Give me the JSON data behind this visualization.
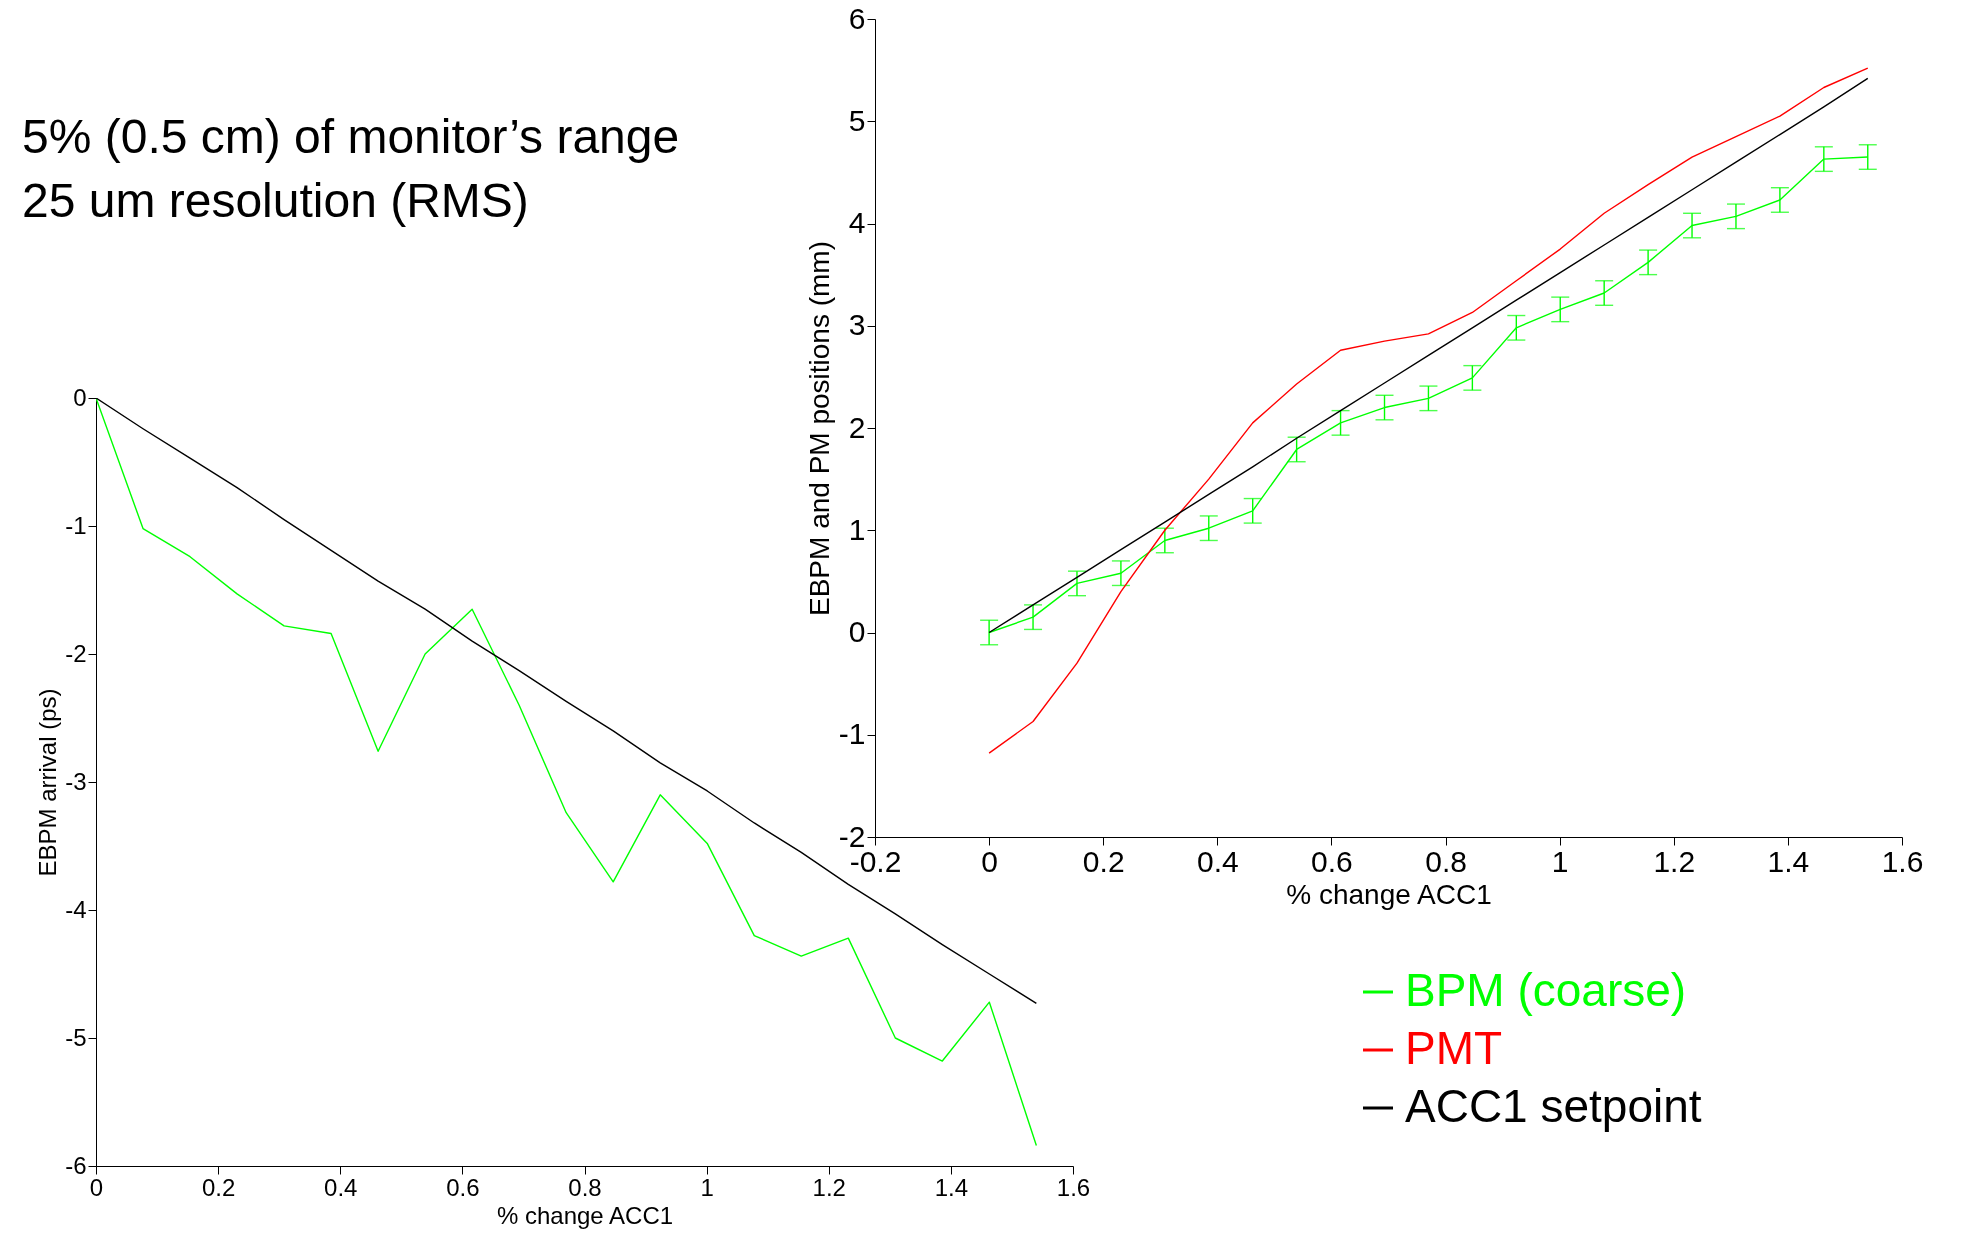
{
  "chart_data": [
    {
      "type": "line",
      "xlabel": "% change ACC1",
      "ylabel": "EBPM arrival (ps)",
      "annotations": [
        "5% (0.5 cm) of monitor’s range",
        "25 um resolution (RMS)"
      ],
      "x": [
        0,
        0.077,
        0.154,
        0.231,
        0.308,
        0.385,
        0.462,
        0.539,
        0.616,
        0.693,
        0.77,
        0.847,
        0.924,
        1.001,
        1.078,
        1.155,
        1.232,
        1.309,
        1.386,
        1.463,
        1.54
      ],
      "series": [
        {
          "color": "#00ff00",
          "values": [
            0,
            -1.02,
            -1.24,
            -1.53,
            -1.78,
            -1.84,
            -2.76,
            -2.0,
            -1.65,
            -2.4,
            -3.24,
            -3.78,
            -3.1,
            -3.48,
            -4.2,
            -4.36,
            -4.22,
            -5.0,
            -5.18,
            -4.72,
            -5.84
          ]
        },
        {
          "color": "#000000",
          "values": [
            0,
            -0.24,
            -0.47,
            -0.7,
            -0.95,
            -1.19,
            -1.43,
            -1.65,
            -1.9,
            -2.13,
            -2.37,
            -2.6,
            -2.85,
            -3.07,
            -3.32,
            -3.55,
            -3.8,
            -4.03,
            -4.27,
            -4.5,
            -4.73
          ]
        }
      ],
      "xlim": [
        0,
        1.6
      ],
      "xticks": [
        0,
        0.2,
        0.4,
        0.6,
        0.8,
        1,
        1.2,
        1.4,
        1.6
      ],
      "ylim": [
        -6,
        0
      ],
      "yticks": [
        -6,
        -5,
        -4,
        -3,
        -2,
        -1,
        0
      ],
      "grid": false,
      "legend": false,
      "line_style": "solid"
    },
    {
      "type": "line",
      "xlabel": "% change ACC1",
      "ylabel": "EBPM and PM positions (mm)",
      "x": [
        0,
        0.077,
        0.154,
        0.231,
        0.308,
        0.385,
        0.462,
        0.539,
        0.616,
        0.693,
        0.77,
        0.847,
        0.924,
        1.001,
        1.078,
        1.155,
        1.232,
        1.309,
        1.386,
        1.463,
        1.54
      ],
      "series": [
        {
          "name": "BPM (coarse)",
          "color": "#00ff00",
          "values": [
            0,
            0.15,
            0.48,
            0.58,
            0.9,
            1.02,
            1.19,
            1.79,
            2.05,
            2.2,
            2.29,
            2.49,
            2.98,
            3.16,
            3.32,
            3.62,
            3.98,
            4.07,
            4.23,
            4.63,
            4.65
          ],
          "errors": [
            0.12,
            0.12,
            0.12,
            0.12,
            0.12,
            0.12,
            0.12,
            0.12,
            0.12,
            0.12,
            0.12,
            0.12,
            0.12,
            0.12,
            0.12,
            0.12,
            0.12,
            0.12,
            0.12,
            0.12,
            0.12
          ]
        },
        {
          "name": "PMT",
          "color": "#ff0000",
          "values": [
            -1.18,
            -0.87,
            -0.3,
            0.4,
            1.0,
            1.5,
            2.05,
            2.43,
            2.76,
            2.85,
            2.92,
            3.13,
            3.44,
            3.75,
            4.1,
            4.38,
            4.65,
            4.85,
            5.05,
            5.33,
            5.52
          ]
        },
        {
          "name": "ACC1 setpoint",
          "color": "#000000",
          "values": [
            0,
            0.27,
            0.54,
            0.81,
            1.08,
            1.35,
            1.62,
            1.9,
            2.17,
            2.44,
            2.71,
            2.98,
            3.25,
            3.52,
            3.79,
            4.06,
            4.33,
            4.6,
            4.87,
            5.14,
            5.42
          ]
        }
      ],
      "xlim": [
        -0.2,
        1.6
      ],
      "xticks": [
        -0.2,
        0,
        0.2,
        0.4,
        0.6,
        0.8,
        1,
        1.2,
        1.4,
        1.6
      ],
      "ylim": [
        -2,
        6
      ],
      "yticks": [
        -2,
        -1,
        0,
        1,
        2,
        3,
        4,
        5,
        6
      ],
      "grid": false,
      "legend": "bottom right",
      "line_style": "solid"
    }
  ]
}
